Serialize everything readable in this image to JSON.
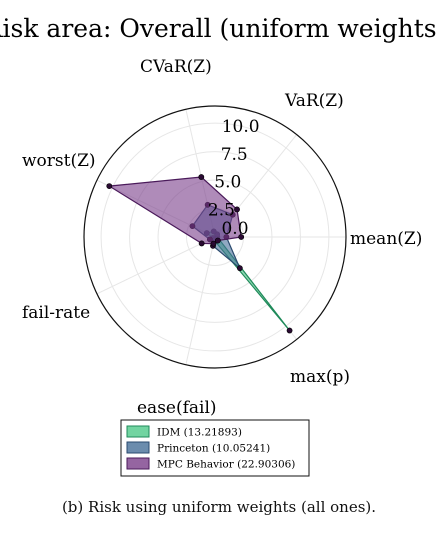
{
  "chart_data": {
    "type": "radar",
    "title": "Risk area: Overall (uniform weights)",
    "axes": [
      "mean(Z)",
      "VaR(Z)",
      "CVaR(Z)",
      "worst(Z)",
      "fail-rate",
      "ease(fail)",
      "max(p)"
    ],
    "radial_ticks": [
      "2.5",
      "5.0",
      "7.5",
      "10.0"
    ],
    "center_tick": "0.0",
    "rmax": 11.5,
    "grid": true,
    "legend_position": "bottom-center",
    "series": [
      {
        "name": "IDM (13.21893)",
        "color": "#4fc98a",
        "stroke": "#1f8a5a",
        "values": [
          0.2,
          0.3,
          0.5,
          0.8,
          0.2,
          0.3,
          10.5
        ]
      },
      {
        "name": "Princeton (10.05241)",
        "color": "#466f99",
        "stroke": "#2a4a6e",
        "values": [
          1.0,
          2.5,
          2.9,
          2.2,
          0.5,
          0.8,
          3.5
        ]
      },
      {
        "name": "MPC Behavior (22.90306)",
        "color": "#7a3e8a",
        "stroke": "#4a1a5a",
        "values": [
          2.3,
          3.1,
          5.4,
          10.3,
          1.3,
          0.6,
          0.4
        ]
      }
    ]
  },
  "caption": "(b) Risk using uniform weights (all ones)."
}
